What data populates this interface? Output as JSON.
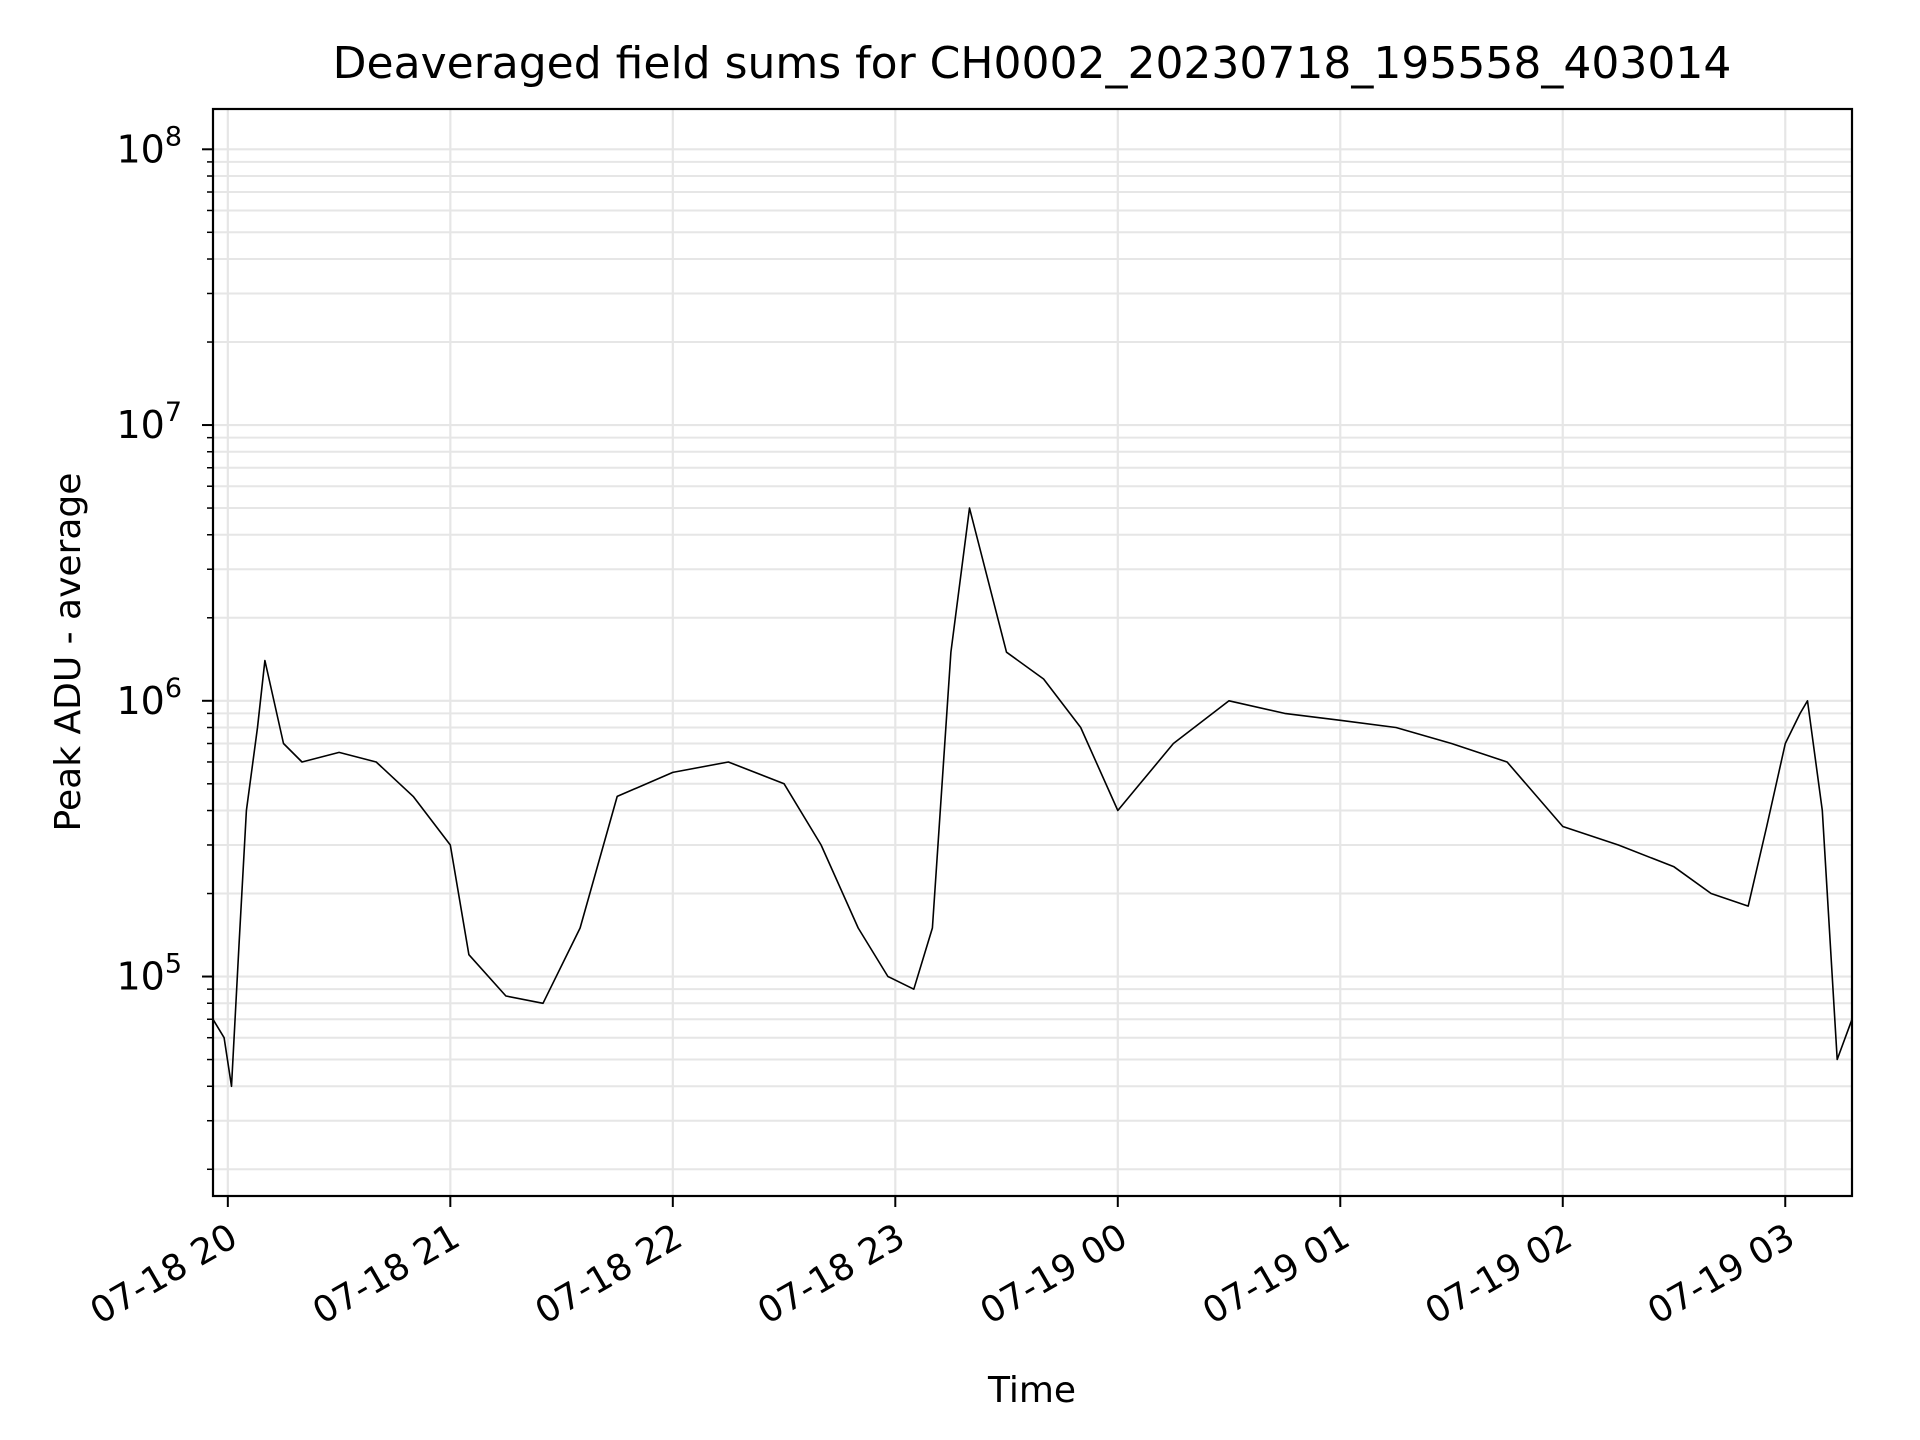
{
  "chart_data": {
    "type": "line",
    "title": "Deaveraged field sums for CH0002_20230718_195558_403014",
    "xlabel": "Time",
    "ylabel": "Peak ADU - average",
    "yscale": "log",
    "xlim": [
      "2023-07-18 19:56",
      "2023-07-19 03:18"
    ],
    "ylim": [
      16000,
      140000000
    ],
    "grid": true,
    "x_ticks": [
      {
        "value": "2023-07-18 20:00",
        "label": "07-18 20"
      },
      {
        "value": "2023-07-18 21:00",
        "label": "07-18 21"
      },
      {
        "value": "2023-07-18 22:00",
        "label": "07-18 22"
      },
      {
        "value": "2023-07-18 23:00",
        "label": "07-18 23"
      },
      {
        "value": "2023-07-19 00:00",
        "label": "07-19 00"
      },
      {
        "value": "2023-07-19 01:00",
        "label": "07-19 01"
      },
      {
        "value": "2023-07-19 02:00",
        "label": "07-19 02"
      },
      {
        "value": "2023-07-19 03:00",
        "label": "07-19 03"
      }
    ],
    "y_ticks": [
      {
        "value": 100000,
        "base": "10",
        "exp": "5"
      },
      {
        "value": 1000000,
        "base": "10",
        "exp": "6"
      },
      {
        "value": 10000000,
        "base": "10",
        "exp": "7"
      },
      {
        "value": 100000000,
        "base": "10",
        "exp": "8"
      }
    ],
    "series": [
      {
        "color": "#000000",
        "x": [
          "2023-07-18 19:56",
          "2023-07-18 19:59",
          "2023-07-18 20:01",
          "2023-07-18 20:03",
          "2023-07-18 20:05",
          "2023-07-18 20:08",
          "2023-07-18 20:10",
          "2023-07-18 20:15",
          "2023-07-18 20:20",
          "2023-07-18 20:30",
          "2023-07-18 20:40",
          "2023-07-18 20:50",
          "2023-07-18 21:00",
          "2023-07-18 21:05",
          "2023-07-18 21:15",
          "2023-07-18 21:25",
          "2023-07-18 21:35",
          "2023-07-18 21:45",
          "2023-07-18 22:00",
          "2023-07-18 22:15",
          "2023-07-18 22:30",
          "2023-07-18 22:40",
          "2023-07-18 22:50",
          "2023-07-18 22:58",
          "2023-07-18 23:05",
          "2023-07-18 23:10",
          "2023-07-18 23:15",
          "2023-07-18 23:20",
          "2023-07-18 23:30",
          "2023-07-18 23:40",
          "2023-07-18 23:50",
          "2023-07-19 00:00",
          "2023-07-19 00:15",
          "2023-07-19 00:30",
          "2023-07-19 00:45",
          "2023-07-19 01:00",
          "2023-07-19 01:15",
          "2023-07-19 01:30",
          "2023-07-19 01:45",
          "2023-07-19 02:00",
          "2023-07-19 02:15",
          "2023-07-19 02:30",
          "2023-07-19 02:40",
          "2023-07-19 02:50",
          "2023-07-19 02:55",
          "2023-07-19 03:00",
          "2023-07-19 03:04",
          "2023-07-19 03:06",
          "2023-07-19 03:10",
          "2023-07-19 03:14",
          "2023-07-19 03:18"
        ],
        "y": [
          70000,
          60000,
          40000,
          130000,
          400000,
          800000,
          1400000,
          700000,
          600000,
          650000,
          600000,
          450000,
          300000,
          120000,
          85000,
          80000,
          150000,
          450000,
          550000,
          600000,
          500000,
          300000,
          150000,
          100000,
          90000,
          150000,
          1500000,
          5000000,
          1500000,
          1200000,
          800000,
          400000,
          700000,
          1000000,
          900000,
          850000,
          800000,
          700000,
          600000,
          350000,
          300000,
          250000,
          200000,
          180000,
          350000,
          700000,
          900000,
          1000000,
          400000,
          50000,
          70000
        ]
      }
    ]
  }
}
